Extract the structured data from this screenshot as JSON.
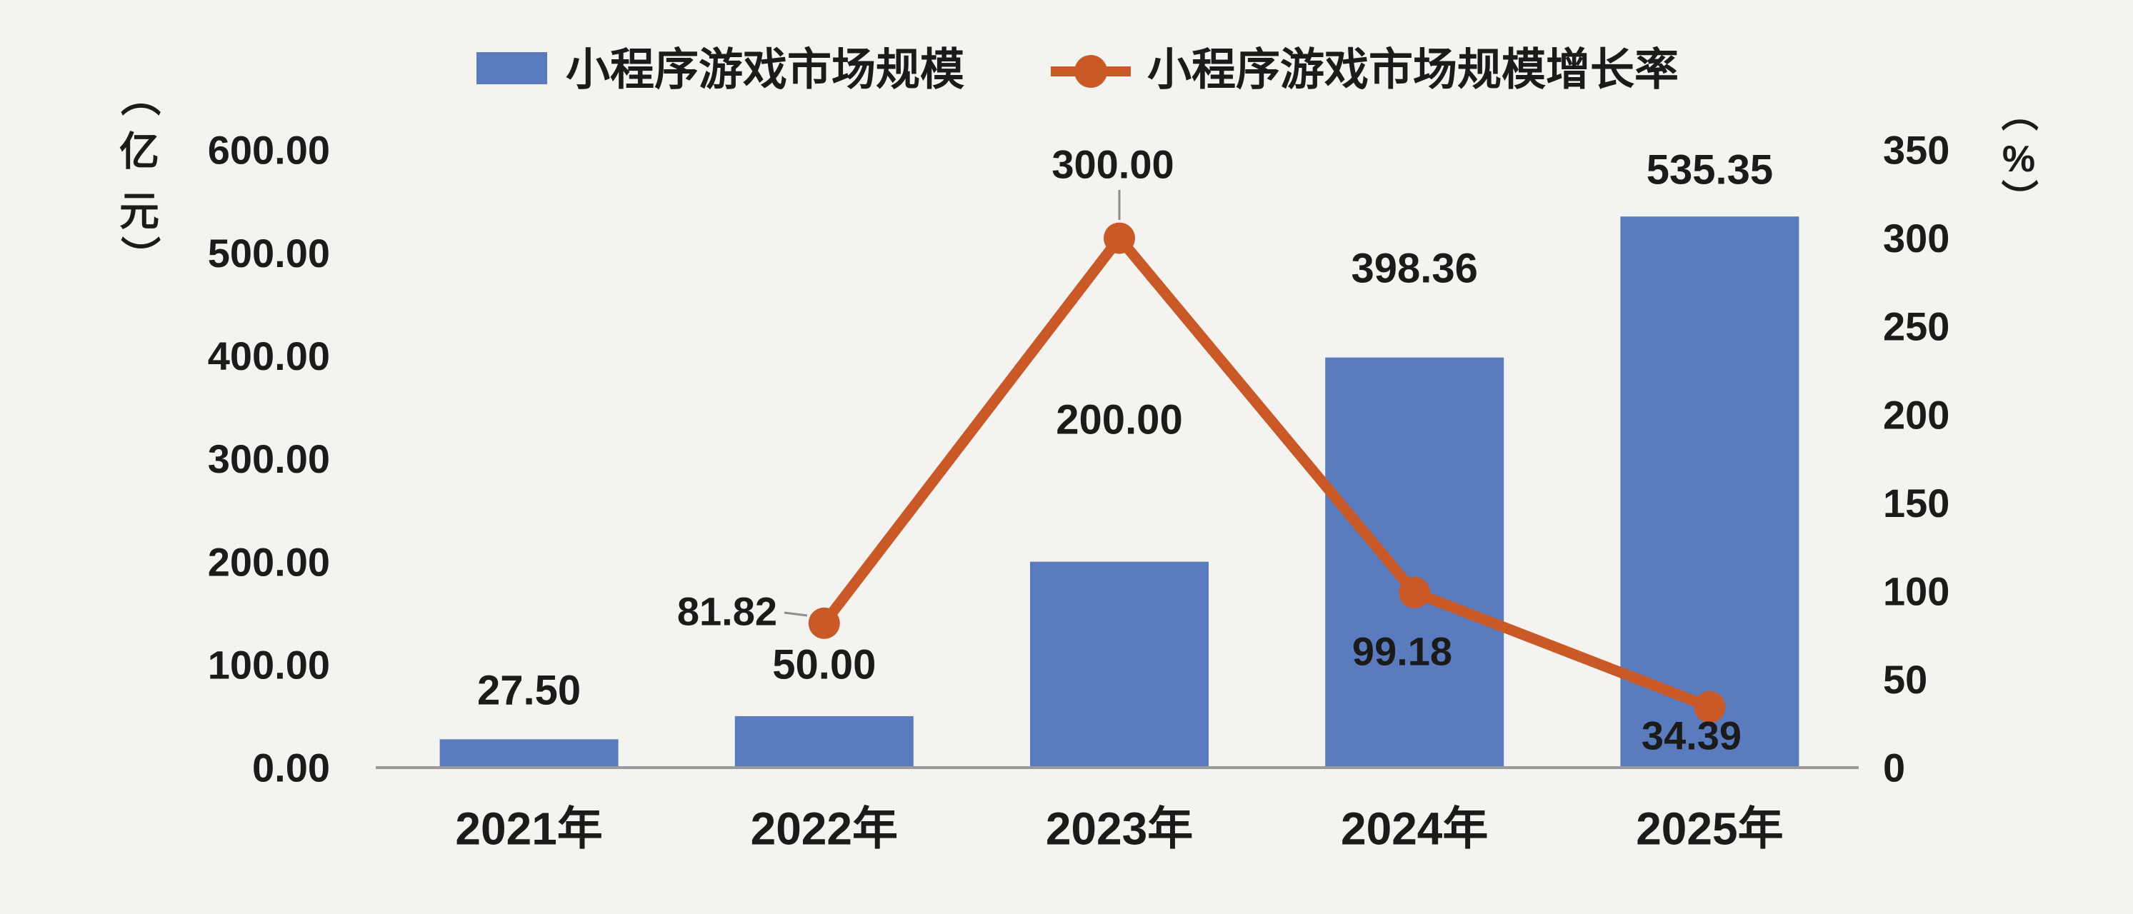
{
  "axes": {
    "left": {
      "unit": "（亿元）",
      "unit_chars": [
        "（",
        "亿",
        "元",
        "）"
      ],
      "ticks": [
        "600.00",
        "500.00",
        "400.00",
        "300.00",
        "200.00",
        "100.00",
        "0.00"
      ]
    },
    "right": {
      "unit": "（%）",
      "unit_chars": [
        "（",
        "%",
        "）"
      ],
      "ticks": [
        "350",
        "300",
        "250",
        "200",
        "150",
        "100",
        "50",
        "0"
      ]
    }
  },
  "chart_data": {
    "type": "bar+line",
    "categories": [
      "2021年",
      "2022年",
      "2023年",
      "2024年",
      "2025年"
    ],
    "series": [
      {
        "name": "小程序游戏市场规模",
        "type": "bar",
        "axis": "left",
        "unit": "亿元",
        "values": [
          27.5,
          50.0,
          200.0,
          398.36,
          535.35
        ],
        "labels": [
          "27.50",
          "50.00",
          "200.00",
          "398.36",
          "535.35"
        ]
      },
      {
        "name": "小程序游戏市场规模增长率",
        "type": "line",
        "axis": "right",
        "unit": "%",
        "values": [
          null,
          81.82,
          300.0,
          99.18,
          34.39
        ],
        "labels": [
          null,
          "81.82",
          "300.00",
          "99.18",
          "34.39"
        ]
      }
    ],
    "left_axis": {
      "label": "（亿元）",
      "range": [
        0,
        600
      ],
      "tick_step": 100
    },
    "right_axis": {
      "label": "（%）",
      "range": [
        0,
        350
      ],
      "tick_step": 50
    },
    "grid": false,
    "legend_position": "top-center"
  },
  "colors": {
    "bar": "#5b7bbf",
    "line": "#c95a28",
    "background": "#f4f3f0",
    "axis_line": "#9a9a9a",
    "leader_line": "#8c8c8c",
    "text": "#1b1b1b"
  }
}
